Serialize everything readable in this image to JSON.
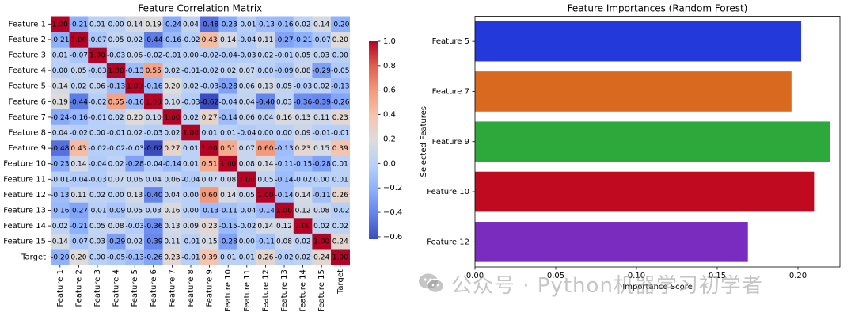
{
  "chart_data": [
    {
      "type": "heatmap",
      "title": "Feature Correlation Matrix",
      "labels": [
        "Feature 1",
        "Feature 2",
        "Feature 3",
        "Feature 4",
        "Feature 5",
        "Feature 6",
        "Feature 7",
        "Feature 8",
        "Feature 9",
        "Feature 10",
        "Feature 11",
        "Feature 12",
        "Feature 13",
        "Feature 14",
        "Feature 15",
        "Target"
      ],
      "values": [
        [
          1.0,
          -0.21,
          0.01,
          0.0,
          0.14,
          0.19,
          -0.24,
          0.04,
          -0.48,
          -0.23,
          -0.01,
          -0.13,
          -0.16,
          0.02,
          0.14,
          -0.2
        ],
        [
          -0.21,
          1.0,
          -0.07,
          0.05,
          0.02,
          -0.44,
          -0.16,
          -0.02,
          0.43,
          0.14,
          -0.04,
          0.11,
          -0.27,
          -0.21,
          -0.07,
          0.2
        ],
        [
          0.01,
          -0.07,
          1.0,
          -0.03,
          0.06,
          -0.02,
          -0.01,
          0.0,
          -0.02,
          -0.04,
          -0.03,
          0.02,
          -0.01,
          0.05,
          0.03,
          0.0
        ],
        [
          0.0,
          0.05,
          -0.03,
          1.0,
          -0.13,
          0.55,
          0.02,
          -0.01,
          -0.02,
          0.02,
          0.07,
          0.0,
          -0.09,
          0.08,
          -0.29,
          -0.05
        ],
        [
          0.14,
          0.02,
          0.06,
          -0.13,
          1.0,
          -0.16,
          0.2,
          0.02,
          -0.03,
          -0.28,
          0.06,
          0.13,
          0.05,
          -0.03,
          0.02,
          -0.13
        ],
        [
          0.19,
          -0.44,
          -0.02,
          0.55,
          -0.16,
          1.0,
          0.1,
          -0.03,
          -0.62,
          -0.04,
          0.04,
          -0.4,
          0.03,
          -0.36,
          -0.39,
          -0.26
        ],
        [
          -0.24,
          -0.16,
          -0.01,
          0.02,
          0.2,
          0.1,
          1.0,
          0.02,
          0.27,
          -0.14,
          0.06,
          0.04,
          0.16,
          0.13,
          0.11,
          0.23
        ],
        [
          0.04,
          -0.02,
          0.0,
          -0.01,
          0.02,
          -0.03,
          0.02,
          1.0,
          0.01,
          0.01,
          -0.04,
          0.0,
          0.0,
          0.09,
          -0.01,
          -0.01
        ],
        [
          -0.48,
          0.43,
          -0.02,
          -0.02,
          -0.03,
          -0.62,
          0.27,
          0.01,
          1.0,
          0.51,
          0.07,
          0.6,
          -0.13,
          0.23,
          0.15,
          0.39
        ],
        [
          -0.23,
          0.14,
          -0.04,
          0.02,
          -0.28,
          -0.04,
          -0.14,
          0.01,
          0.51,
          1.0,
          0.08,
          0.14,
          -0.11,
          -0.15,
          -0.28,
          0.01
        ],
        [
          -0.01,
          -0.04,
          -0.03,
          0.07,
          0.06,
          0.04,
          0.06,
          -0.04,
          0.07,
          0.08,
          1.0,
          0.05,
          -0.14,
          -0.02,
          0.0,
          0.01
        ],
        [
          -0.13,
          0.11,
          0.02,
          0.0,
          0.13,
          -0.4,
          0.04,
          0.0,
          0.6,
          0.14,
          0.05,
          1.0,
          -0.14,
          0.14,
          -0.11,
          0.26
        ],
        [
          -0.16,
          -0.27,
          -0.01,
          -0.09,
          0.05,
          0.03,
          0.16,
          0.0,
          -0.13,
          -0.11,
          -0.04,
          -0.14,
          1.0,
          0.12,
          0.08,
          -0.02
        ],
        [
          0.02,
          -0.21,
          0.05,
          0.08,
          -0.03,
          -0.36,
          0.13,
          0.09,
          0.23,
          -0.15,
          -0.02,
          0.14,
          0.12,
          1.0,
          0.02,
          0.02
        ],
        [
          0.14,
          -0.07,
          0.03,
          -0.29,
          0.02,
          -0.39,
          0.11,
          -0.01,
          0.15,
          -0.28,
          0.0,
          -0.11,
          0.08,
          0.02,
          1.0,
          0.24
        ],
        [
          -0.2,
          0.2,
          0.0,
          -0.05,
          -0.13,
          -0.26,
          0.23,
          -0.01,
          0.39,
          0.01,
          0.01,
          0.26,
          -0.02,
          0.02,
          0.24,
          1.0
        ]
      ],
      "colormap": "coolwarm",
      "colorbar": {
        "min": -0.62,
        "max": 1.0,
        "ticks": [
          1.0,
          0.8,
          0.6,
          0.4,
          0.2,
          0.0,
          -0.2,
          -0.4,
          -0.6
        ],
        "tick_labels": [
          "1.0",
          "0.8",
          "0.6",
          "0.4",
          "0.2",
          "0.0",
          "−0.2",
          "−0.4",
          "−0.6"
        ]
      }
    },
    {
      "type": "bar",
      "orientation": "horizontal",
      "title": "Feature Importances (Random Forest)",
      "xlabel": "Importance Score",
      "ylabel": "Selected Features",
      "categories": [
        "Feature 5",
        "Feature 7",
        "Feature 9",
        "Feature 10",
        "Feature 12"
      ],
      "values": [
        0.202,
        0.196,
        0.22,
        0.21,
        0.169
      ],
      "colors": [
        "#2339d9",
        "#d8691e",
        "#2ca93a",
        "#bf0a1f",
        "#7a2bc0"
      ],
      "xlim": [
        0,
        0.226
      ],
      "xticks": [
        0.0,
        0.05,
        0.1,
        0.15,
        0.2
      ],
      "xtick_labels": [
        "0.00",
        "0.05",
        "0.10",
        "0.15",
        "0.20"
      ],
      "grid": false
    }
  ],
  "watermark": {
    "text": "公众号 · Python机器学习初学者",
    "icon": "wechat-icon"
  }
}
